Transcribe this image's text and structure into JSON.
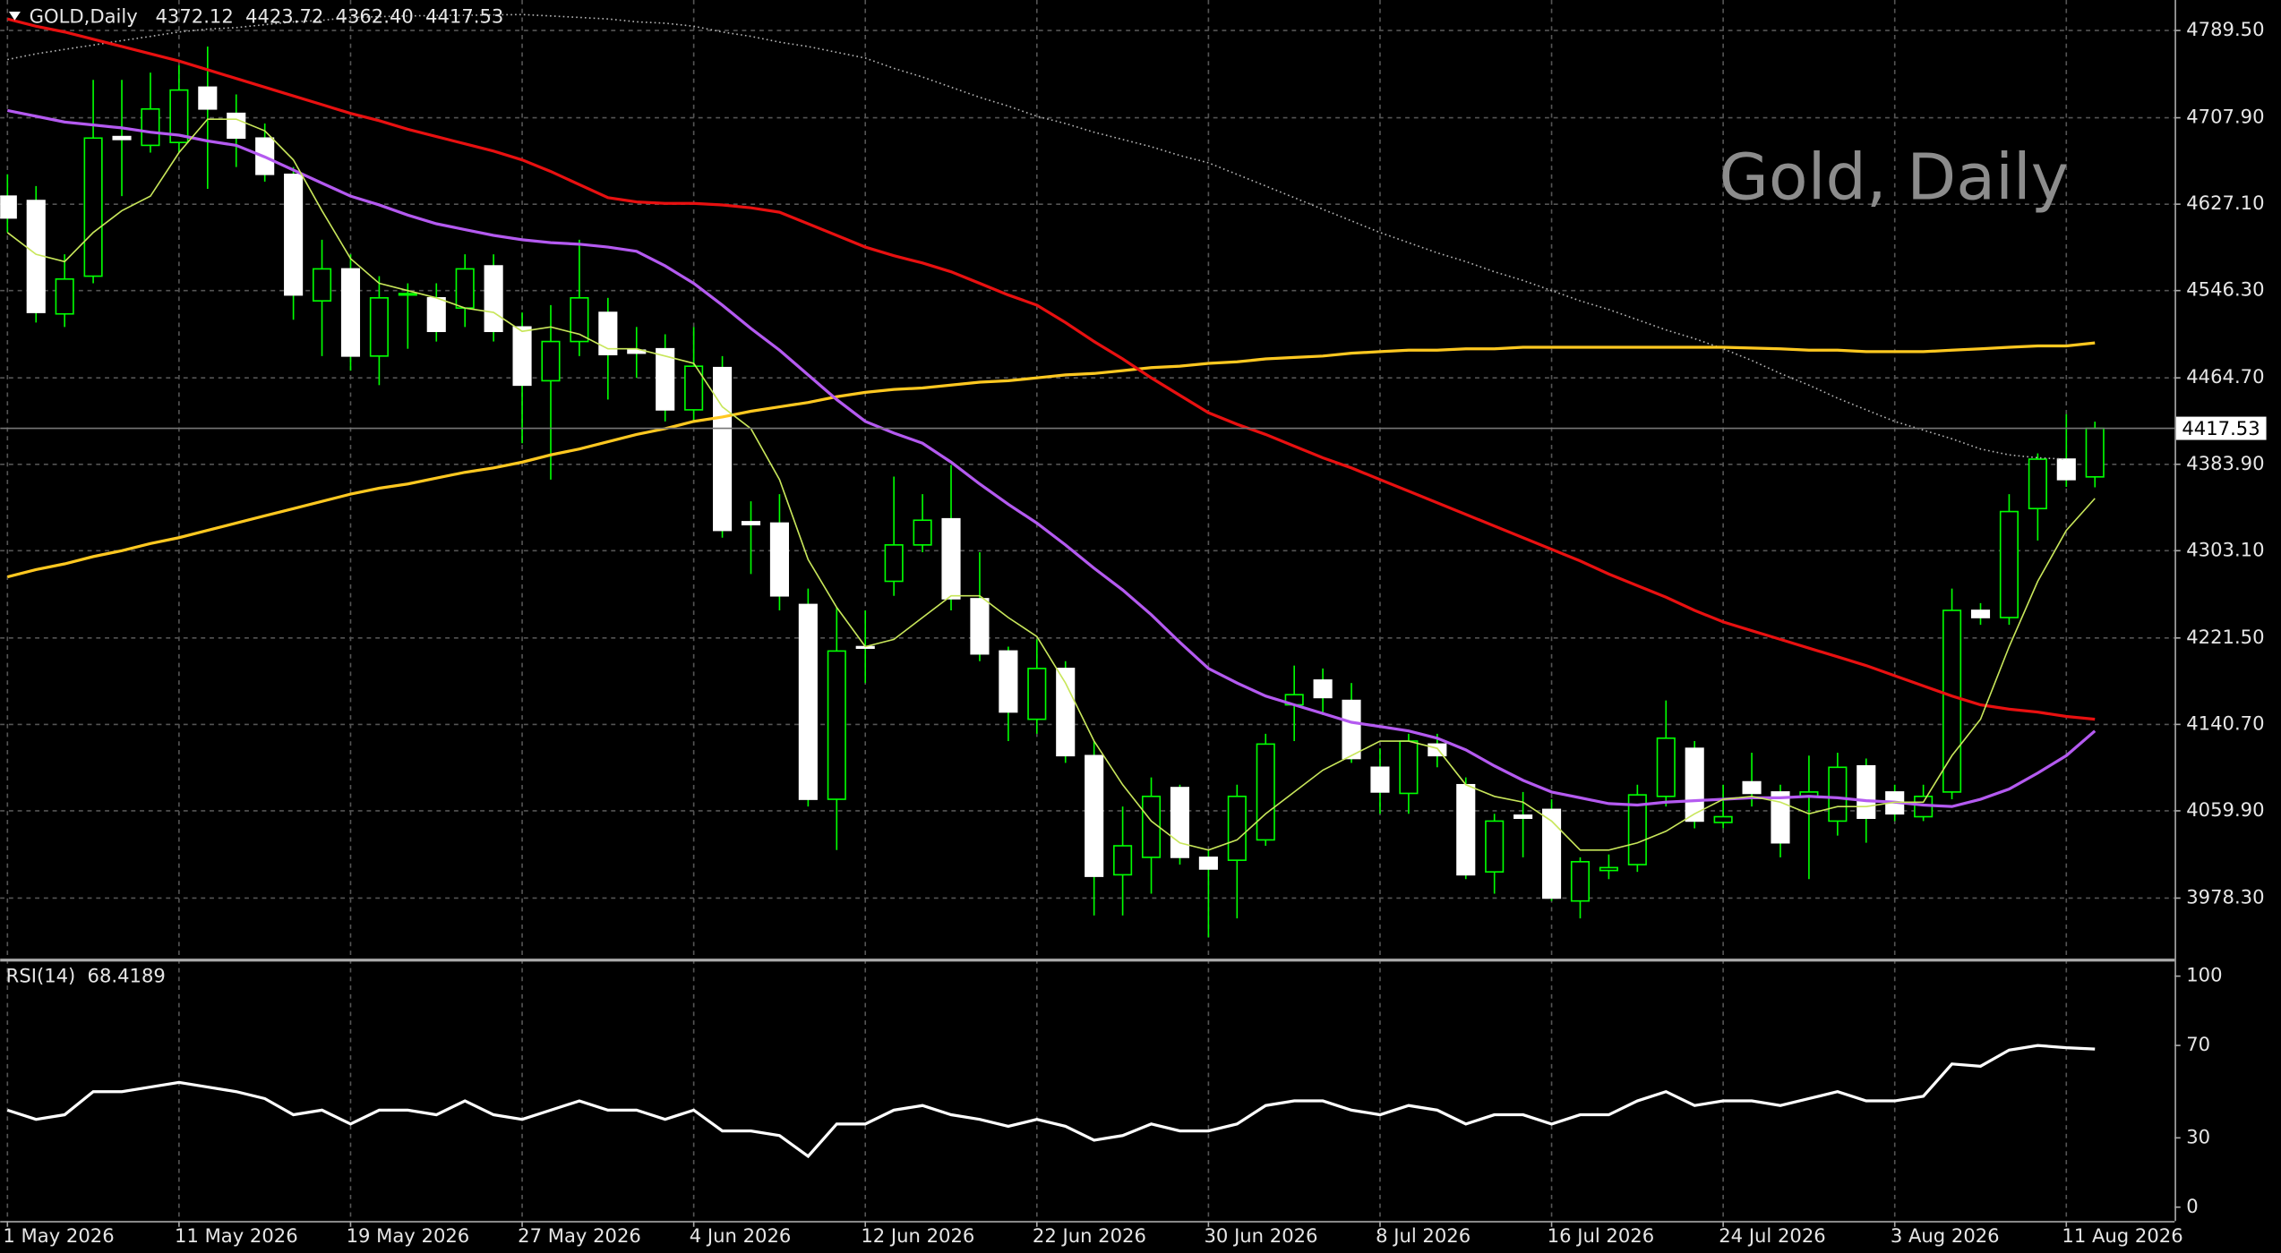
{
  "chart_data": [
    {
      "type": "candlestick",
      "symbol": "GOLD,Daily",
      "last_bar_labels": [
        "4372.12",
        "4423.72",
        "4362.40",
        "4417.53"
      ],
      "watermark": "Gold, Daily",
      "categories": [
        "1 May 2026",
        null,
        null,
        null,
        null,
        null,
        "11 May 2026",
        null,
        null,
        null,
        null,
        null,
        "19 May 2026",
        null,
        null,
        null,
        null,
        null,
        "27 May 2026",
        null,
        null,
        null,
        null,
        null,
        "4 Jun 2026",
        null,
        null,
        null,
        null,
        null,
        "12 Jun 2026",
        null,
        null,
        null,
        null,
        null,
        "22 Jun 2026",
        null,
        null,
        null,
        null,
        null,
        "30 Jun 2026",
        null,
        null,
        null,
        null,
        null,
        "8 Jul 2026",
        null,
        null,
        null,
        null,
        null,
        "16 Jul 2026",
        null,
        null,
        null,
        null,
        null,
        "24 Jul 2026",
        null,
        null,
        null,
        null,
        null,
        "3 Aug 2026",
        null,
        null,
        null,
        null,
        null,
        "11 Aug 2026",
        null
      ],
      "open": [
        4634.6,
        4630.5,
        4524.5,
        4559.8,
        4690.3,
        4682.1,
        4684.8,
        4736.5,
        4712.0,
        4688.9,
        4655.0,
        4536.7,
        4566.6,
        4485.1,
        4542.2,
        4539.5,
        4530.0,
        4569.4,
        4512.3,
        4462.0,
        4498.7,
        4525.9,
        4490.6,
        4491.9,
        4434.8,
        4474.3,
        4330.2,
        4328.9,
        4252.8,
        4070.7,
        4213.4,
        4274.5,
        4308.5,
        4332.9,
        4258.2,
        4209.3,
        4145.5,
        4193.0,
        4111.5,
        4000.1,
        4016.4,
        4081.6,
        4016.4,
        4013.7,
        4032.7,
        4159.0,
        4182.1,
        4163.1,
        4100.6,
        4076.2,
        4122.3,
        4084.3,
        4002.8,
        4055.8,
        4061.2,
        3975.6,
        4004.1,
        4009.6,
        4073.4,
        4118.3,
        4049.0,
        4087.0,
        4077.5,
        4073.4,
        4050.3,
        4101.9,
        4077.5,
        4054.4,
        4077.5,
        4247.3,
        4240.6,
        4342.5,
        4388.7,
        4372.12
      ],
      "high": [
        4655.0,
        4644.1,
        4580.2,
        4743.3,
        4743.3,
        4750.1,
        4756.9,
        4774.5,
        4729.7,
        4702.5,
        4661.8,
        4593.8,
        4580.2,
        4559.8,
        4553.1,
        4553.1,
        4580.2,
        4580.2,
        4525.9,
        4532.7,
        4593.8,
        4539.5,
        4512.3,
        4505.5,
        4512.3,
        4485.1,
        4349.3,
        4356.0,
        4267.7,
        4250.1,
        4247.3,
        4372.4,
        4356.0,
        4383.2,
        4301.7,
        4213.4,
        4220.2,
        4199.8,
        4125.1,
        4063.9,
        4091.1,
        4084.3,
        4023.2,
        4084.3,
        4131.9,
        4195.7,
        4193.0,
        4179.4,
        4118.3,
        4131.9,
        4131.9,
        4091.1,
        4057.1,
        4077.5,
        4070.7,
        4016.4,
        4019.1,
        4084.3,
        4163.1,
        4125.1,
        4084.3,
        4114.2,
        4084.3,
        4111.5,
        4114.2,
        4108.8,
        4084.3,
        4084.3,
        4267.7,
        4254.1,
        4356.0,
        4394.1,
        4430.8,
        4423.72
      ],
      "low": [
        4600.6,
        4516.4,
        4512.3,
        4553.1,
        4634.6,
        4675.3,
        4675.3,
        4641.4,
        4661.8,
        4648.2,
        4519.1,
        4485.1,
        4471.5,
        4457.9,
        4491.9,
        4498.7,
        4512.3,
        4498.7,
        4403.6,
        4369.6,
        4485.1,
        4444.4,
        4464.7,
        4424.0,
        4424.0,
        4315.3,
        4281.3,
        4247.3,
        4063.9,
        4023.2,
        4179.4,
        4260.9,
        4301.7,
        4247.3,
        4199.8,
        4125.1,
        4131.9,
        4104.7,
        3962.0,
        3962.0,
        3982.4,
        4009.6,
        3941.6,
        3959.3,
        4027.2,
        4125.1,
        4149.5,
        4104.7,
        4057.1,
        4057.1,
        4100.6,
        3996.0,
        3982.4,
        4016.4,
        3975.6,
        3959.3,
        3996.0,
        4002.8,
        4063.9,
        4043.5,
        4043.5,
        4063.9,
        4016.4,
        3996.0,
        4036.7,
        4030.0,
        4050.3,
        4050.3,
        4070.7,
        4233.8,
        4233.8,
        4312.6,
        4362.8,
        4362.4
      ],
      "close": [
        4614.2,
        4525.9,
        4557.1,
        4688.9,
        4687.6,
        4716.1,
        4733.8,
        4716.1,
        4688.9,
        4655.0,
        4542.2,
        4566.6,
        4485.1,
        4539.5,
        4543.5,
        4508.2,
        4566.6,
        4508.2,
        4457.9,
        4498.7,
        4539.5,
        4486.5,
        4487.8,
        4434.8,
        4475.6,
        4322.1,
        4327.5,
        4260.9,
        4070.7,
        4209.3,
        4212.0,
        4308.5,
        4331.6,
        4258.2,
        4206.6,
        4152.3,
        4193.0,
        4111.5,
        3998.7,
        4027.2,
        4073.4,
        4016.4,
        4005.5,
        4073.4,
        4122.3,
        4168.5,
        4165.8,
        4108.8,
        4077.5,
        4125.1,
        4111.5,
        4000.1,
        4050.3,
        4053.0,
        3978.3,
        4012.3,
        4006.8,
        4074.8,
        4127.8,
        4050.3,
        4054.4,
        4076.2,
        4030.0,
        4077.5,
        4100.6,
        4053.0,
        4057.1,
        4073.4,
        4247.3,
        4240.6,
        4339.7,
        4388.7,
        4369.6,
        4417.53
      ],
      "up_color": "#00ff00",
      "down_color": "#ffffff",
      "series": [
        {
          "color": "#b4b4b4",
          "style": "dotted",
          "values": [
            4762.3,
            4767.7,
            4771.8,
            4775.9,
            4780.0,
            4784.0,
            4788.1,
            4790.8,
            4792.2,
            4794.9,
            4797.6,
            4799.0,
            4801.7,
            4802.4,
            4803.1,
            4803.5,
            4803.7,
            4804.1,
            4804.4,
            4803.1,
            4801.7,
            4800.3,
            4797.6,
            4796.3,
            4793.5,
            4788.1,
            4784.0,
            4778.6,
            4774.5,
            4769.1,
            4763.7,
            4754.1,
            4746.0,
            4736.5,
            4727.0,
            4718.8,
            4709.3,
            4702.5,
            4694.4,
            4687.6,
            4680.8,
            4672.6,
            4665.8,
            4654.9,
            4644.1,
            4633.2,
            4622.3,
            4611.5,
            4600.6,
            4591.1,
            4581.6,
            4573.4,
            4563.9,
            4555.8,
            4546.3,
            4536.7,
            4528.6,
            4519.1,
            4509.5,
            4501.4,
            4491.9,
            4481.0,
            4468.8,
            4457.9,
            4445.7,
            4434.8,
            4424.0,
            4415.8,
            4407.7,
            4398.2,
            4392.7,
            4390.0,
            4388.7,
            null
          ]
        },
        {
          "color": "#ffc820",
          "style": "thick",
          "values": [
            4278.6,
            4285.4,
            4290.8,
            4297.6,
            4303.1,
            4309.8,
            4315.3,
            4322.1,
            4328.9,
            4335.7,
            4342.4,
            4349.2,
            4356.0,
            4361.5,
            4365.5,
            4371.0,
            4376.4,
            4380.5,
            4385.9,
            4392.7,
            4398.2,
            4405.0,
            4411.8,
            4417.2,
            4424.0,
            4428.1,
            4433.5,
            4437.6,
            4441.7,
            4447.1,
            4451.2,
            4453.9,
            4455.2,
            4458.0,
            4460.7,
            4462.0,
            4464.7,
            4467.5,
            4468.8,
            4471.5,
            4474.3,
            4475.6,
            4478.3,
            4479.7,
            4482.4,
            4483.8,
            4485.1,
            4487.8,
            4489.2,
            4490.6,
            4490.6,
            4491.9,
            4491.9,
            4493.3,
            4493.3,
            4493.3,
            4493.3,
            4493.3,
            4493.3,
            4493.3,
            4493.3,
            4492.6,
            4491.9,
            4490.6,
            4490.6,
            4489.2,
            4489.2,
            4489.2,
            4490.6,
            4491.9,
            4493.3,
            4494.6,
            4494.6,
            4497.4
          ]
        },
        {
          "color": "#e81010",
          "style": "thick",
          "values": [
            4800.3,
            4793.5,
            4788.1,
            4781.3,
            4774.5,
            4767.7,
            4760.9,
            4752.8,
            4744.6,
            4736.5,
            4728.3,
            4720.2,
            4712.0,
            4705.2,
            4697.1,
            4690.3,
            4683.5,
            4676.7,
            4668.5,
            4657.7,
            4645.4,
            4633.2,
            4629.2,
            4627.8,
            4627.8,
            4626.4,
            4623.7,
            4619.6,
            4608.8,
            4597.9,
            4587.0,
            4578.9,
            4572.1,
            4563.9,
            4553.1,
            4542.2,
            4532.7,
            4516.4,
            4498.7,
            4482.4,
            4464.7,
            4448.4,
            4432.1,
            4421.3,
            4411.8,
            4400.9,
            4390.0,
            4380.5,
            4369.6,
            4358.8,
            4347.9,
            4337.0,
            4326.2,
            4315.3,
            4304.4,
            4293.5,
            4281.3,
            4270.4,
            4259.6,
            4247.3,
            4236.5,
            4228.3,
            4220.2,
            4212.0,
            4203.9,
            4195.7,
            4186.2,
            4176.7,
            4167.2,
            4159.0,
            4154.9,
            4152.2,
            4148.1,
            4145.5
          ]
        },
        {
          "color": "#b45af0",
          "style": "thick",
          "values": [
            4714.7,
            4709.3,
            4703.9,
            4701.2,
            4698.4,
            4694.4,
            4691.6,
            4686.2,
            4682.1,
            4671.3,
            4659.0,
            4646.8,
            4634.6,
            4626.4,
            4616.9,
            4608.8,
            4603.3,
            4597.9,
            4593.8,
            4591.1,
            4589.7,
            4587.0,
            4583.0,
            4569.4,
            4553.1,
            4532.7,
            4510.9,
            4490.6,
            4467.5,
            4444.4,
            4424.0,
            4413.1,
            4403.6,
            4385.9,
            4365.5,
            4346.5,
            4328.9,
            4308.5,
            4286.7,
            4266.4,
            4243.3,
            4217.4,
            4193.0,
            4179.4,
            4167.2,
            4159.0,
            4150.9,
            4142.7,
            4138.7,
            4134.6,
            4127.8,
            4116.9,
            4101.9,
            4088.4,
            4077.5,
            4072.1,
            4066.6,
            4065.3,
            4068.0,
            4069.4,
            4070.7,
            4072.1,
            4072.1,
            4073.4,
            4072.1,
            4069.4,
            4068.0,
            4065.3,
            4063.9,
            4070.7,
            4080.2,
            4095.2,
            4111.5,
            4134.6
          ]
        },
        {
          "color": "#c8e65a",
          "style": "thin",
          "values": [
            4600.6,
            4580.2,
            4573.4,
            4600.6,
            4621.0,
            4634.6,
            4675.3,
            4706.6,
            4706.6,
            4695.7,
            4668.5,
            4621.0,
            4576.2,
            4553.1,
            4546.3,
            4539.5,
            4530.0,
            4525.9,
            4508.2,
            4512.3,
            4505.5,
            4491.9,
            4491.9,
            4485.1,
            4478.3,
            4437.6,
            4417.2,
            4369.6,
            4294.9,
            4250.1,
            4213.4,
            4220.2,
            4240.6,
            4260.9,
            4260.9,
            4240.6,
            4222.9,
            4179.4,
            4125.1,
            4084.3,
            4050.3,
            4029.9,
            4023.2,
            4032.7,
            4057.1,
            4077.5,
            4097.9,
            4111.5,
            4125.1,
            4125.1,
            4118.3,
            4084.3,
            4073.4,
            4068.0,
            4050.3,
            4023.2,
            4023.2,
            4029.9,
            4040.8,
            4057.1,
            4070.7,
            4073.4,
            4068.0,
            4057.1,
            4063.9,
            4063.9,
            4068.0,
            4068.0,
            4111.5,
            4145.5,
            4213.4,
            4274.5,
            4322.1,
            4352.0
          ]
        }
      ],
      "ylim": [
        3921,
        4818
      ],
      "yticks": [
        {
          "value": 4789.5,
          "label": "4789.50"
        },
        {
          "value": 4707.9,
          "label": "4707.90"
        },
        {
          "value": 4627.1,
          "label": "4627.10"
        },
        {
          "value": 4546.3,
          "label": "4546.30"
        },
        {
          "value": 4464.7,
          "label": "4464.70"
        },
        {
          "value": 4383.9,
          "label": "4383.90"
        },
        {
          "value": 4303.1,
          "label": "4303.10"
        },
        {
          "value": 4221.5,
          "label": "4221.50"
        },
        {
          "value": 4140.7,
          "label": "4140.70"
        },
        {
          "value": 4059.9,
          "label": "4059.90"
        },
        {
          "value": 3978.3,
          "label": "3978.30"
        }
      ],
      "grid": true
    },
    {
      "type": "line",
      "title": "RSI(14)",
      "color": "#ffffff",
      "values": [
        42,
        38,
        40,
        50,
        50,
        52,
        54,
        52,
        50,
        47,
        40,
        42,
        36,
        42,
        42,
        40,
        46,
        40,
        38,
        42,
        46,
        42,
        42,
        38,
        42,
        33,
        33,
        31,
        22,
        36,
        36,
        42,
        44,
        40,
        38,
        35,
        38,
        35,
        29,
        31,
        36,
        33,
        33,
        36,
        44,
        46,
        46,
        42,
        40,
        44,
        42,
        36,
        40,
        40,
        36,
        40,
        40,
        46,
        50,
        44,
        46,
        46,
        44,
        47,
        50,
        46,
        46,
        48,
        62,
        61,
        68,
        70,
        69,
        68.4189
      ],
      "ylim": [
        -6,
        106
      ],
      "yticks": [
        0,
        30,
        70,
        100
      ]
    }
  ]
}
